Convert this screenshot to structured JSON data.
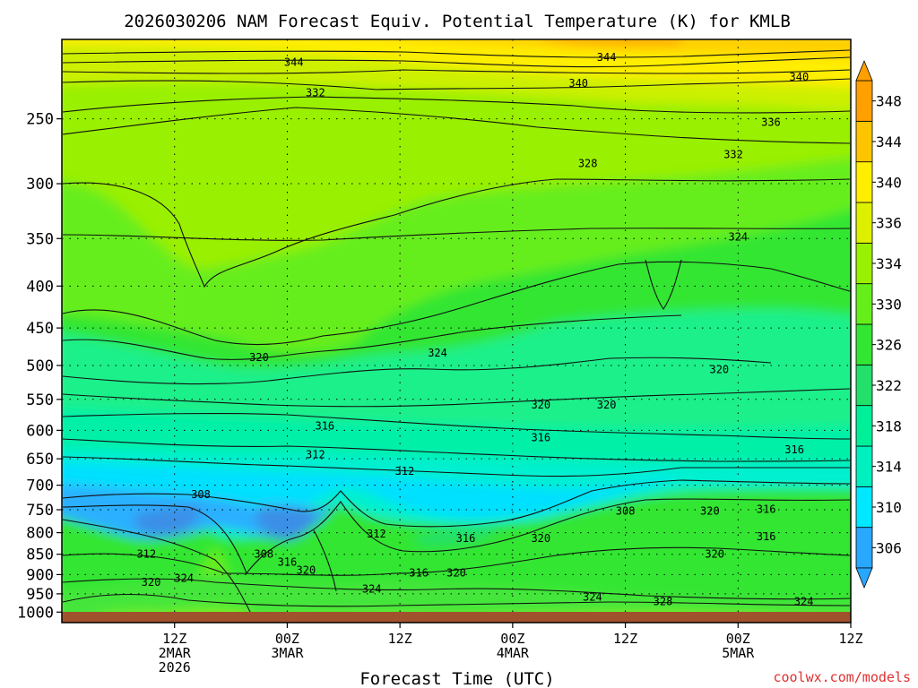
{
  "chart_data": {
    "type": "contour",
    "title": "2026030206 NAM Forecast Equiv. Potential Temperature (K) for KMLB",
    "xlabel": "Forecast Time (UTC)",
    "ylabel": "",
    "credit": "coolwx.com/models",
    "x_hour_range": [
      -6,
      78
    ],
    "y_pressure_range": [
      1030,
      200
    ],
    "y_ticks": [
      250,
      300,
      350,
      400,
      450,
      500,
      550,
      600,
      650,
      700,
      750,
      800,
      850,
      900,
      950,
      1000
    ],
    "x_ticks": [
      {
        "hour": 6,
        "lines": [
          "12Z",
          "2MAR",
          "2026"
        ]
      },
      {
        "hour": 18,
        "lines": [
          "00Z",
          "3MAR"
        ]
      },
      {
        "hour": 30,
        "lines": [
          "12Z"
        ]
      },
      {
        "hour": 42,
        "lines": [
          "00Z",
          "4MAR"
        ]
      },
      {
        "hour": 54,
        "lines": [
          "12Z"
        ]
      },
      {
        "hour": 66,
        "lines": [
          "00Z",
          "5MAR"
        ]
      },
      {
        "hour": 78,
        "lines": [
          "12Z"
        ]
      }
    ],
    "grid": true,
    "colorbar": {
      "levels": [
        306,
        310,
        314,
        318,
        322,
        326,
        330,
        334,
        336,
        340,
        344,
        348
      ],
      "colors": [
        "#29a8ff",
        "#00e8ff",
        "#00f0c0",
        "#00f09a",
        "#22e06a",
        "#33e633",
        "#66ee1a",
        "#99f000",
        "#ddf000",
        "#ffee00",
        "#ffc400",
        "#ffa000"
      ]
    },
    "contour_labels": [
      {
        "text": "344",
        "hour": 18.7,
        "p": 213
      },
      {
        "text": "344",
        "hour": 52.0,
        "p": 210
      },
      {
        "text": "340",
        "hour": 49.0,
        "p": 226
      },
      {
        "text": "340",
        "hour": 72.5,
        "p": 222
      },
      {
        "text": "332",
        "hour": 21.0,
        "p": 232
      },
      {
        "text": "336",
        "hour": 69.5,
        "p": 252
      },
      {
        "text": "328",
        "hour": 50.0,
        "p": 283
      },
      {
        "text": "332",
        "hour": 65.5,
        "p": 276
      },
      {
        "text": "324",
        "hour": 66.0,
        "p": 348
      },
      {
        "text": "320",
        "hour": 15.0,
        "p": 488
      },
      {
        "text": "324",
        "hour": 34.0,
        "p": 482
      },
      {
        "text": "320",
        "hour": 64.0,
        "p": 505
      },
      {
        "text": "320",
        "hour": 45.0,
        "p": 558
      },
      {
        "text": "320",
        "hour": 52.0,
        "p": 558
      },
      {
        "text": "316",
        "hour": 22.0,
        "p": 592
      },
      {
        "text": "316",
        "hour": 45.0,
        "p": 612
      },
      {
        "text": "312",
        "hour": 21.0,
        "p": 642
      },
      {
        "text": "316",
        "hour": 72.0,
        "p": 633
      },
      {
        "text": "312",
        "hour": 30.5,
        "p": 672
      },
      {
        "text": "308",
        "hour": 8.8,
        "p": 718
      },
      {
        "text": "308",
        "hour": 54.0,
        "p": 752
      },
      {
        "text": "320",
        "hour": 63.0,
        "p": 752
      },
      {
        "text": "316",
        "hour": 69.0,
        "p": 748
      },
      {
        "text": "312",
        "hour": 27.5,
        "p": 802
      },
      {
        "text": "316",
        "hour": 37.0,
        "p": 812
      },
      {
        "text": "320",
        "hour": 45.0,
        "p": 812
      },
      {
        "text": "316",
        "hour": 69.0,
        "p": 808
      },
      {
        "text": "312",
        "hour": 3.0,
        "p": 848
      },
      {
        "text": "308",
        "hour": 15.5,
        "p": 848
      },
      {
        "text": "320",
        "hour": 63.5,
        "p": 848
      },
      {
        "text": "316",
        "hour": 18.0,
        "p": 868
      },
      {
        "text": "320",
        "hour": 20.0,
        "p": 888
      },
      {
        "text": "316",
        "hour": 32.0,
        "p": 895
      },
      {
        "text": "320",
        "hour": 36.0,
        "p": 895
      },
      {
        "text": "324",
        "hour": 7.0,
        "p": 908
      },
      {
        "text": "320",
        "hour": 3.5,
        "p": 918
      },
      {
        "text": "324",
        "hour": 27.0,
        "p": 936
      },
      {
        "text": "324",
        "hour": 50.5,
        "p": 958
      },
      {
        "text": "328",
        "hour": 58.0,
        "p": 970
      },
      {
        "text": "324",
        "hour": 73.0,
        "p": 970
      }
    ]
  }
}
